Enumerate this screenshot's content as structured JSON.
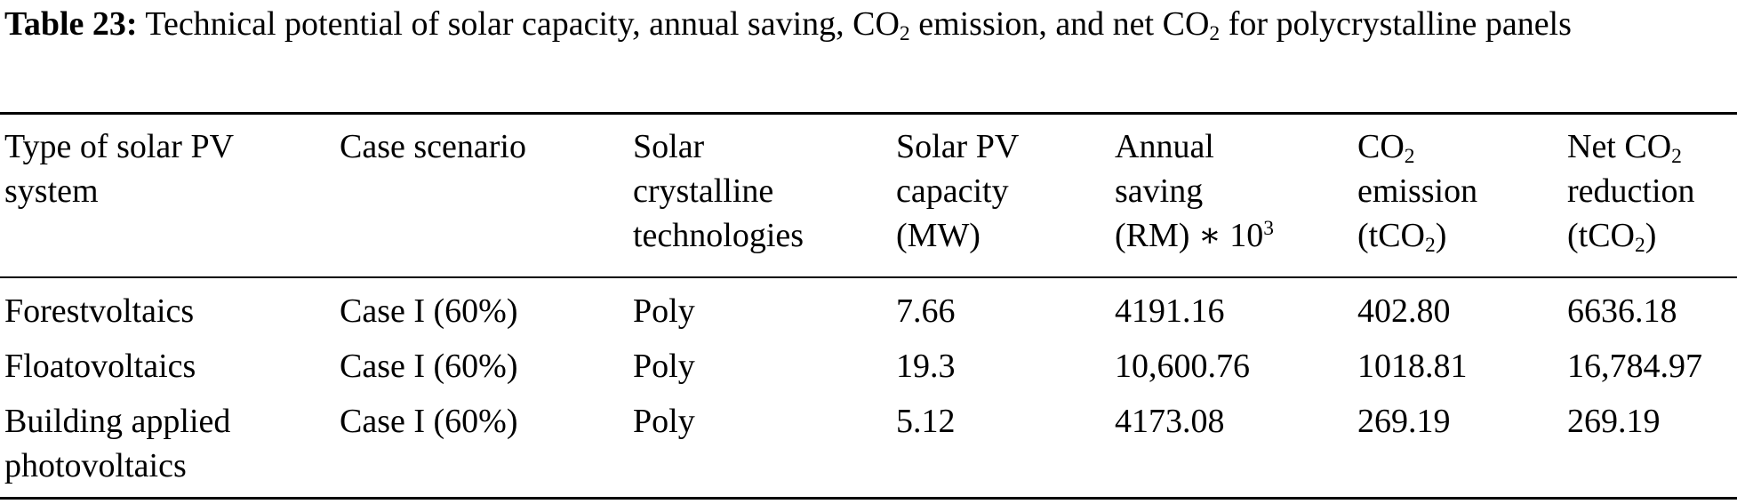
{
  "caption": {
    "label": "Table 23:",
    "text_part1": " Technical potential of solar capacity, annual saving, CO",
    "sub1": "2",
    "text_part2": " emission, and net CO",
    "sub2": "2",
    "text_part3": " for polycrystalline panels"
  },
  "headers": {
    "col1": {
      "line1": "Type of solar PV",
      "line2": "system"
    },
    "col2": {
      "line1": "Case scenario"
    },
    "col3": {
      "line1": "Solar",
      "line2": "crystalline",
      "line3": "technologies"
    },
    "col4": {
      "line1": "Solar PV",
      "line2": "capacity",
      "line3": "(MW)"
    },
    "col5": {
      "line1": "Annual",
      "line2": "saving",
      "line3_main": "(RM) ∗ 10",
      "line3_sup": "3"
    },
    "col6": {
      "line1_main": "CO",
      "line1_sub": "2",
      "line2": "emission",
      "line3_pre": "(tCO",
      "line3_sub": "2",
      "line3_post": ")"
    },
    "col7": {
      "line1_main": "Net CO",
      "line1_sub": "2",
      "line2": "reduction",
      "line3_pre": "(tCO",
      "line3_sub": "2",
      "line3_post": ")"
    }
  },
  "rows": [
    {
      "system_line1": "Forestvoltaics",
      "scenario": "Case I (60%)",
      "technology": "Poly",
      "capacity": "7.66",
      "saving": "4191.16",
      "emission": "402.80",
      "net_reduction": "6636.18"
    },
    {
      "system_line1": "Floatovoltaics",
      "scenario": "Case I (60%)",
      "technology": "Poly",
      "capacity": "19.3",
      "saving": "10,600.76",
      "emission": "1018.81",
      "net_reduction": "16,784.97"
    },
    {
      "system_line1": "Building applied",
      "system_line2": "photovoltaics",
      "scenario": "Case I (60%)",
      "technology": "Poly",
      "capacity": "5.12",
      "saving": "4173.08",
      "emission": "269.19",
      "net_reduction": "269.19"
    }
  ]
}
